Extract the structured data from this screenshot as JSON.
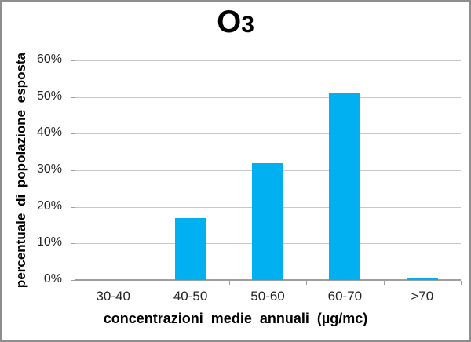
{
  "window": {
    "background": "#ffffff",
    "border_color": "#8e8e8e"
  },
  "chart_data": {
    "type": "bar",
    "title": "O3",
    "title_main": "O",
    "title_sub": "3",
    "categories": [
      "30-40",
      "40-50",
      "50-60",
      "60-70",
      ">70"
    ],
    "values": [
      0,
      17,
      32,
      51,
      0.4
    ],
    "xlabel": "concentrazioni medie annuali (µg/mc)",
    "ylabel": "percentuale di popolazione esposta",
    "ylim": [
      0,
      60
    ],
    "y_tick_step": 10,
    "y_tick_labels": [
      "0%",
      "10%",
      "20%",
      "30%",
      "40%",
      "50%",
      "60%"
    ],
    "grid": true,
    "legend": "none",
    "bar_color": "#00b0f0",
    "gridline_color": "#c8c8c8",
    "axis_color": "#9f9f9f",
    "label_color": "#262626",
    "title_color": "#000000"
  }
}
